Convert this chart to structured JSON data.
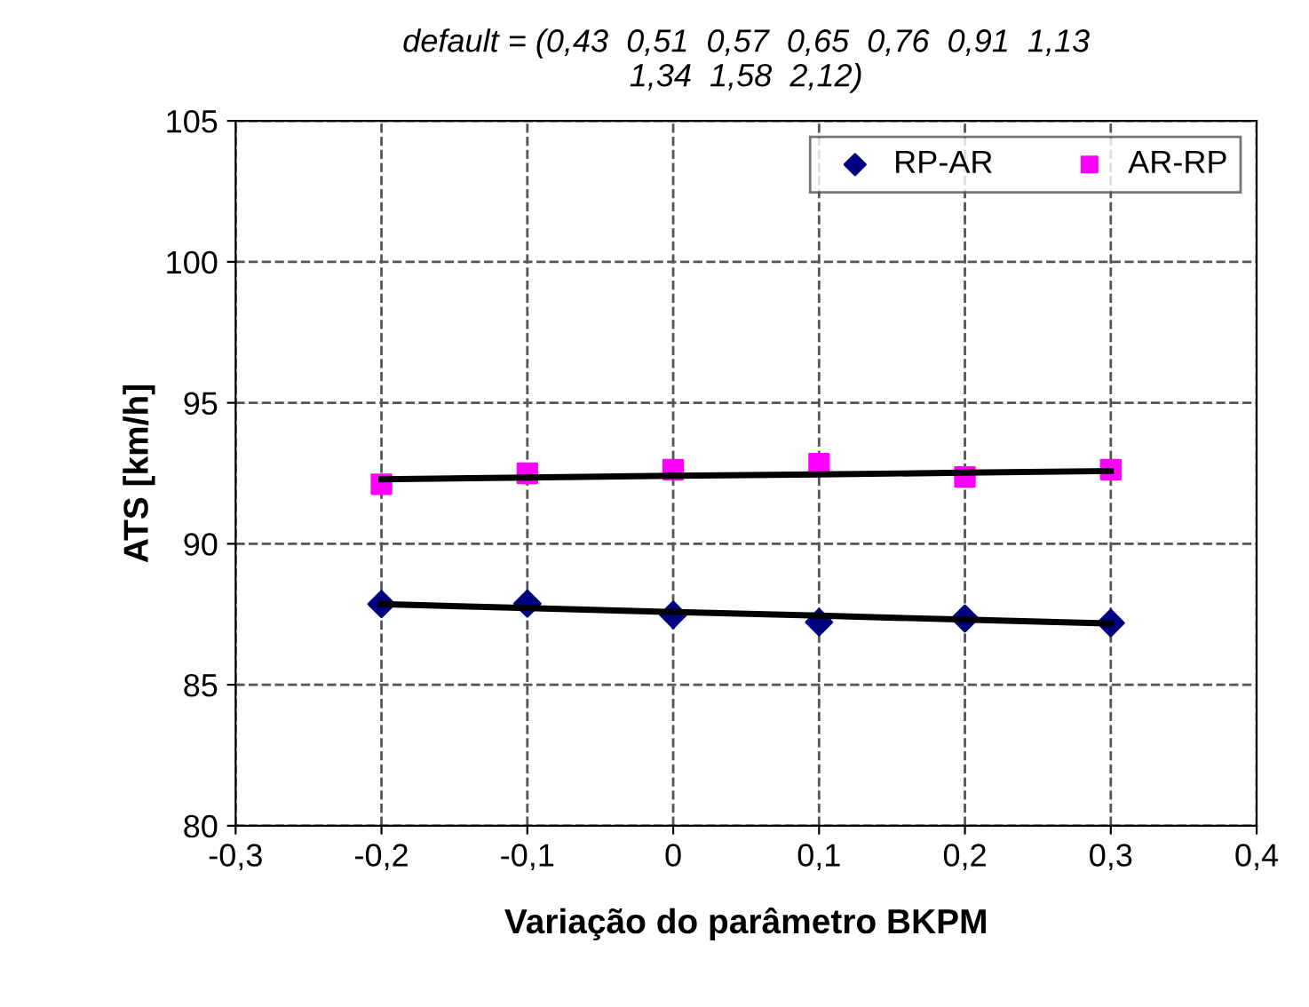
{
  "chart_data": {
    "type": "scatter",
    "title": "default = (0,43  0,51  0,57  0,65  0,76  0,91  1,13\n1,34  1,58  2,12)",
    "xlabel": "Variação do parâmetro BKPM",
    "ylabel": "ATS [km/h]",
    "x": [
      -0.2,
      -0.1,
      0,
      0.1,
      0.2,
      0.3
    ],
    "series": [
      {
        "name": "RP-AR",
        "color": "#000080",
        "marker": "diamond",
        "values": [
          87.86,
          87.88,
          87.48,
          87.22,
          87.35,
          87.19
        ]
      },
      {
        "name": "AR-RP",
        "color": "#ff00ff",
        "marker": "square",
        "values": [
          92.11,
          92.5,
          92.63,
          92.84,
          92.37,
          92.63
        ]
      },
      {
        "type": "line",
        "color": "#000000",
        "values": [
          87.86,
          87.72,
          87.58,
          87.45,
          87.31,
          87.17
        ]
      },
      {
        "type": "line",
        "color": "#000000",
        "values": [
          92.29,
          92.35,
          92.41,
          92.46,
          92.52,
          92.58
        ]
      }
    ],
    "xlim": [
      -0.3,
      0.4
    ],
    "xticks": [
      {
        "value": -0.3,
        "label": "-0,3"
      },
      {
        "value": -0.2,
        "label": "-0,2"
      },
      {
        "value": -0.1,
        "label": "-0,1"
      },
      {
        "value": 0,
        "label": "0"
      },
      {
        "value": 0.1,
        "label": "0,1"
      },
      {
        "value": 0.2,
        "label": "0,2"
      },
      {
        "value": 0.3,
        "label": "0,3"
      },
      {
        "value": 0.4,
        "label": "0,4"
      }
    ],
    "ylim": [
      80,
      105
    ],
    "yticks": [
      80,
      85,
      90,
      95,
      100,
      105
    ],
    "grid": true,
    "legend": "top right"
  }
}
